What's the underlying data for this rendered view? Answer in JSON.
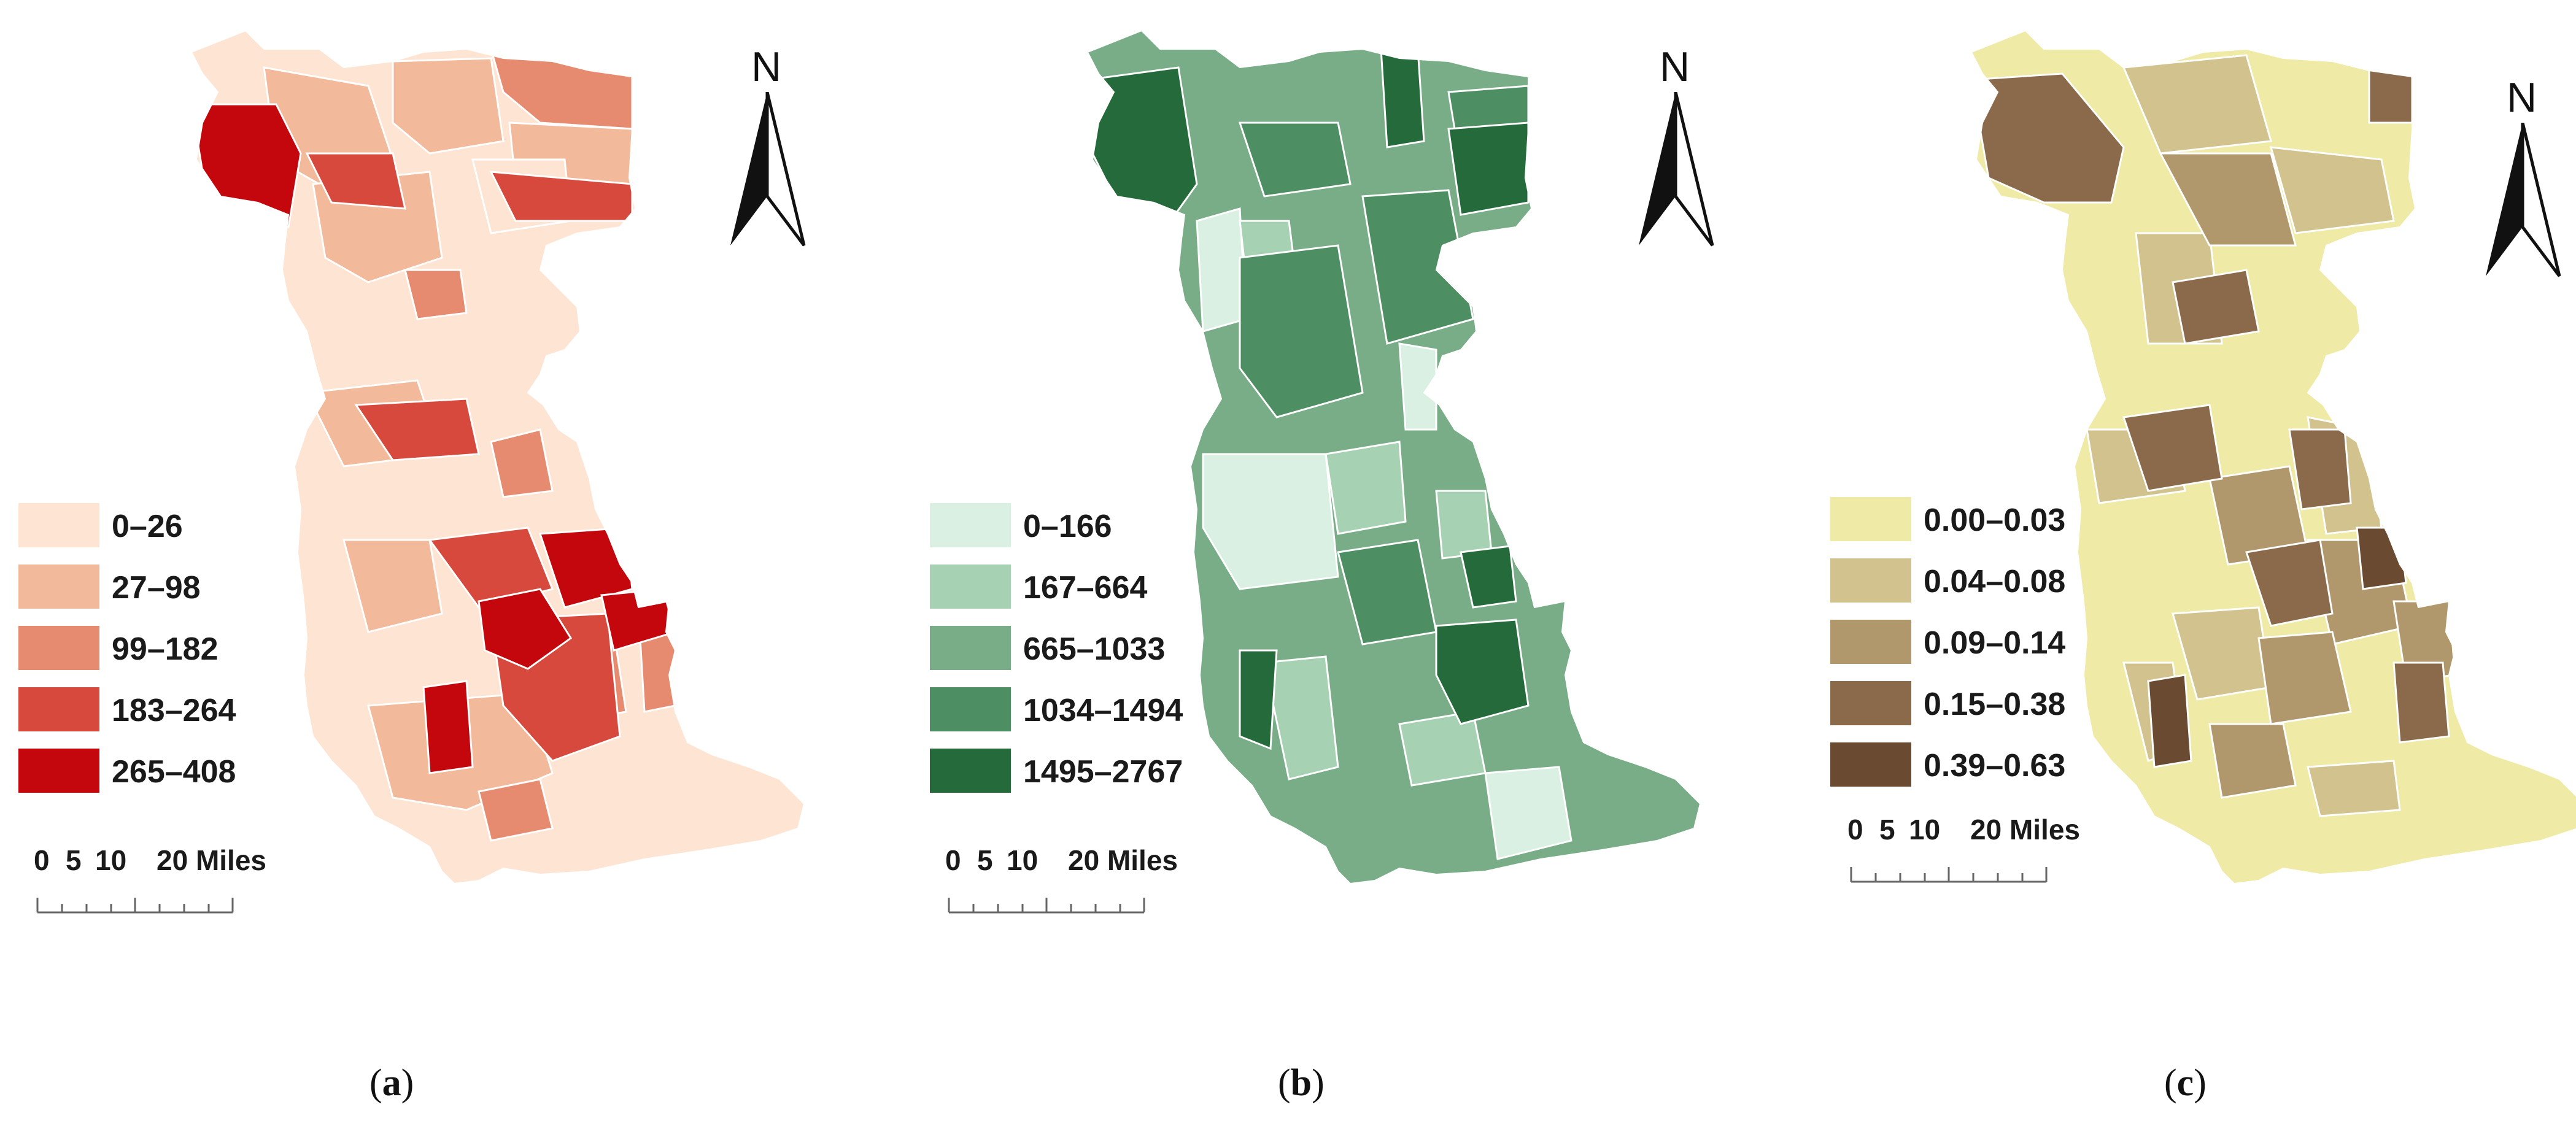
{
  "north_label": "N",
  "scale": {
    "ticks": [
      "0",
      "5",
      "10",
      "20 Miles"
    ]
  },
  "panels": [
    {
      "caption_open": "(",
      "caption_letter": "a",
      "caption_close": ")",
      "palette": [
        "#fde4d3",
        "#f2b99a",
        "#e68b6f",
        "#d6493c",
        "#c4060d"
      ],
      "legend": [
        "0–26",
        "27–98",
        "99–182",
        "183–264",
        "265–408"
      ]
    },
    {
      "caption_open": "(",
      "caption_letter": "b",
      "caption_close": ")",
      "palette": [
        "#d9f0e3",
        "#a6d1b3",
        "#78ad87",
        "#4e8e63",
        "#246a3b"
      ],
      "legend": [
        "0–166",
        "167–664",
        "665–1033",
        "1034–1494",
        "1495–2767"
      ]
    },
    {
      "caption_open": "(",
      "caption_letter": "c",
      "caption_close": ")",
      "palette": [
        "#efeaa5",
        "#d2c38e",
        "#b1986c",
        "#8b6a4c",
        "#6a4a31"
      ],
      "legend": [
        "0.00–0.03",
        "0.04–0.08",
        "0.09–0.14",
        "0.15–0.38",
        "0.39–0.63"
      ]
    }
  ]
}
